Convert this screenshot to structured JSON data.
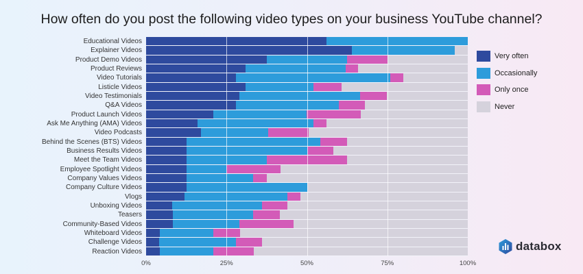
{
  "title": "How often do you post the following video types on your business YouTube channel?",
  "legend": [
    {
      "label": "Very often",
      "color": "#2e4a9e"
    },
    {
      "label": "Occasionally",
      "color": "#2d9cdb"
    },
    {
      "label": "Only once",
      "color": "#d35bb8"
    },
    {
      "label": "Never",
      "color": "#d5d2dc"
    }
  ],
  "x_ticks": [
    "0%",
    "25%",
    "50%",
    "75%",
    "100%"
  ],
  "brand": {
    "name": "databox",
    "icon": "databox-logo-icon"
  },
  "chart_data": {
    "type": "bar",
    "orientation": "horizontal",
    "stacked": true,
    "normalized": true,
    "title": "How often do you post the following video types on your business YouTube channel?",
    "xlabel": "",
    "ylabel": "",
    "xlim": [
      0,
      100
    ],
    "x_ticks": [
      "0%",
      "25%",
      "50%",
      "75%",
      "100%"
    ],
    "legend_position": "right",
    "grid": true,
    "categories": [
      "Educational Videos",
      "Explainer Videos",
      "Product Demo Videos",
      "Product Reviews",
      "Video Tutorials",
      "Listicle Videos",
      "Video Testimonials",
      "Q&A Videos",
      "Product Launch Videos",
      "Ask Me Anything (AMA) Videos",
      "Video Podcasts",
      "Behind the Scenes (BTS) Videos",
      "Business Results Videos",
      "Meet the Team Videos",
      "Employee Spotlight Videos",
      "Company Values Videos",
      "Company Culture Videos",
      "Vlogs",
      "Unboxing Videos",
      "Teasers",
      "Community-Based Videos",
      "Whiteboard Videos",
      "Challenge Videos",
      "Reaction Videos"
    ],
    "series": [
      {
        "name": "Very often",
        "color": "#2e4a9e",
        "values": [
          56,
          64,
          37.5,
          31,
          28,
          31,
          29,
          28,
          21,
          16,
          17,
          12.5,
          12.5,
          12.5,
          12.5,
          12.5,
          12.5,
          12,
          8,
          8.3,
          8.3,
          4.2,
          4,
          4.2
        ]
      },
      {
        "name": "Occasionally",
        "color": "#2d9cdb",
        "values": [
          44,
          32,
          25,
          31,
          48,
          21,
          37.5,
          32,
          29,
          36,
          21,
          41.7,
          37.5,
          25,
          12.5,
          20.8,
          37.5,
          32,
          28,
          25,
          20.8,
          16.7,
          24,
          16.7
        ]
      },
      {
        "name": "Only once",
        "color": "#d35bb8",
        "values": [
          0,
          0,
          12.5,
          3.8,
          4,
          8.7,
          8.3,
          8,
          16.7,
          4,
          12.5,
          8.3,
          8.3,
          25,
          16.7,
          4.2,
          0,
          4,
          8,
          8.3,
          16.7,
          8.3,
          8,
          12.5
        ]
      },
      {
        "name": "Never",
        "color": "#d5d2dc",
        "values": [
          0,
          4,
          25,
          34.2,
          20,
          39.3,
          25.2,
          32,
          33.3,
          44,
          49.5,
          37.5,
          41.7,
          37.5,
          58.3,
          62.5,
          50,
          52,
          56,
          58.4,
          54.2,
          70.8,
          64,
          66.6
        ]
      }
    ]
  }
}
